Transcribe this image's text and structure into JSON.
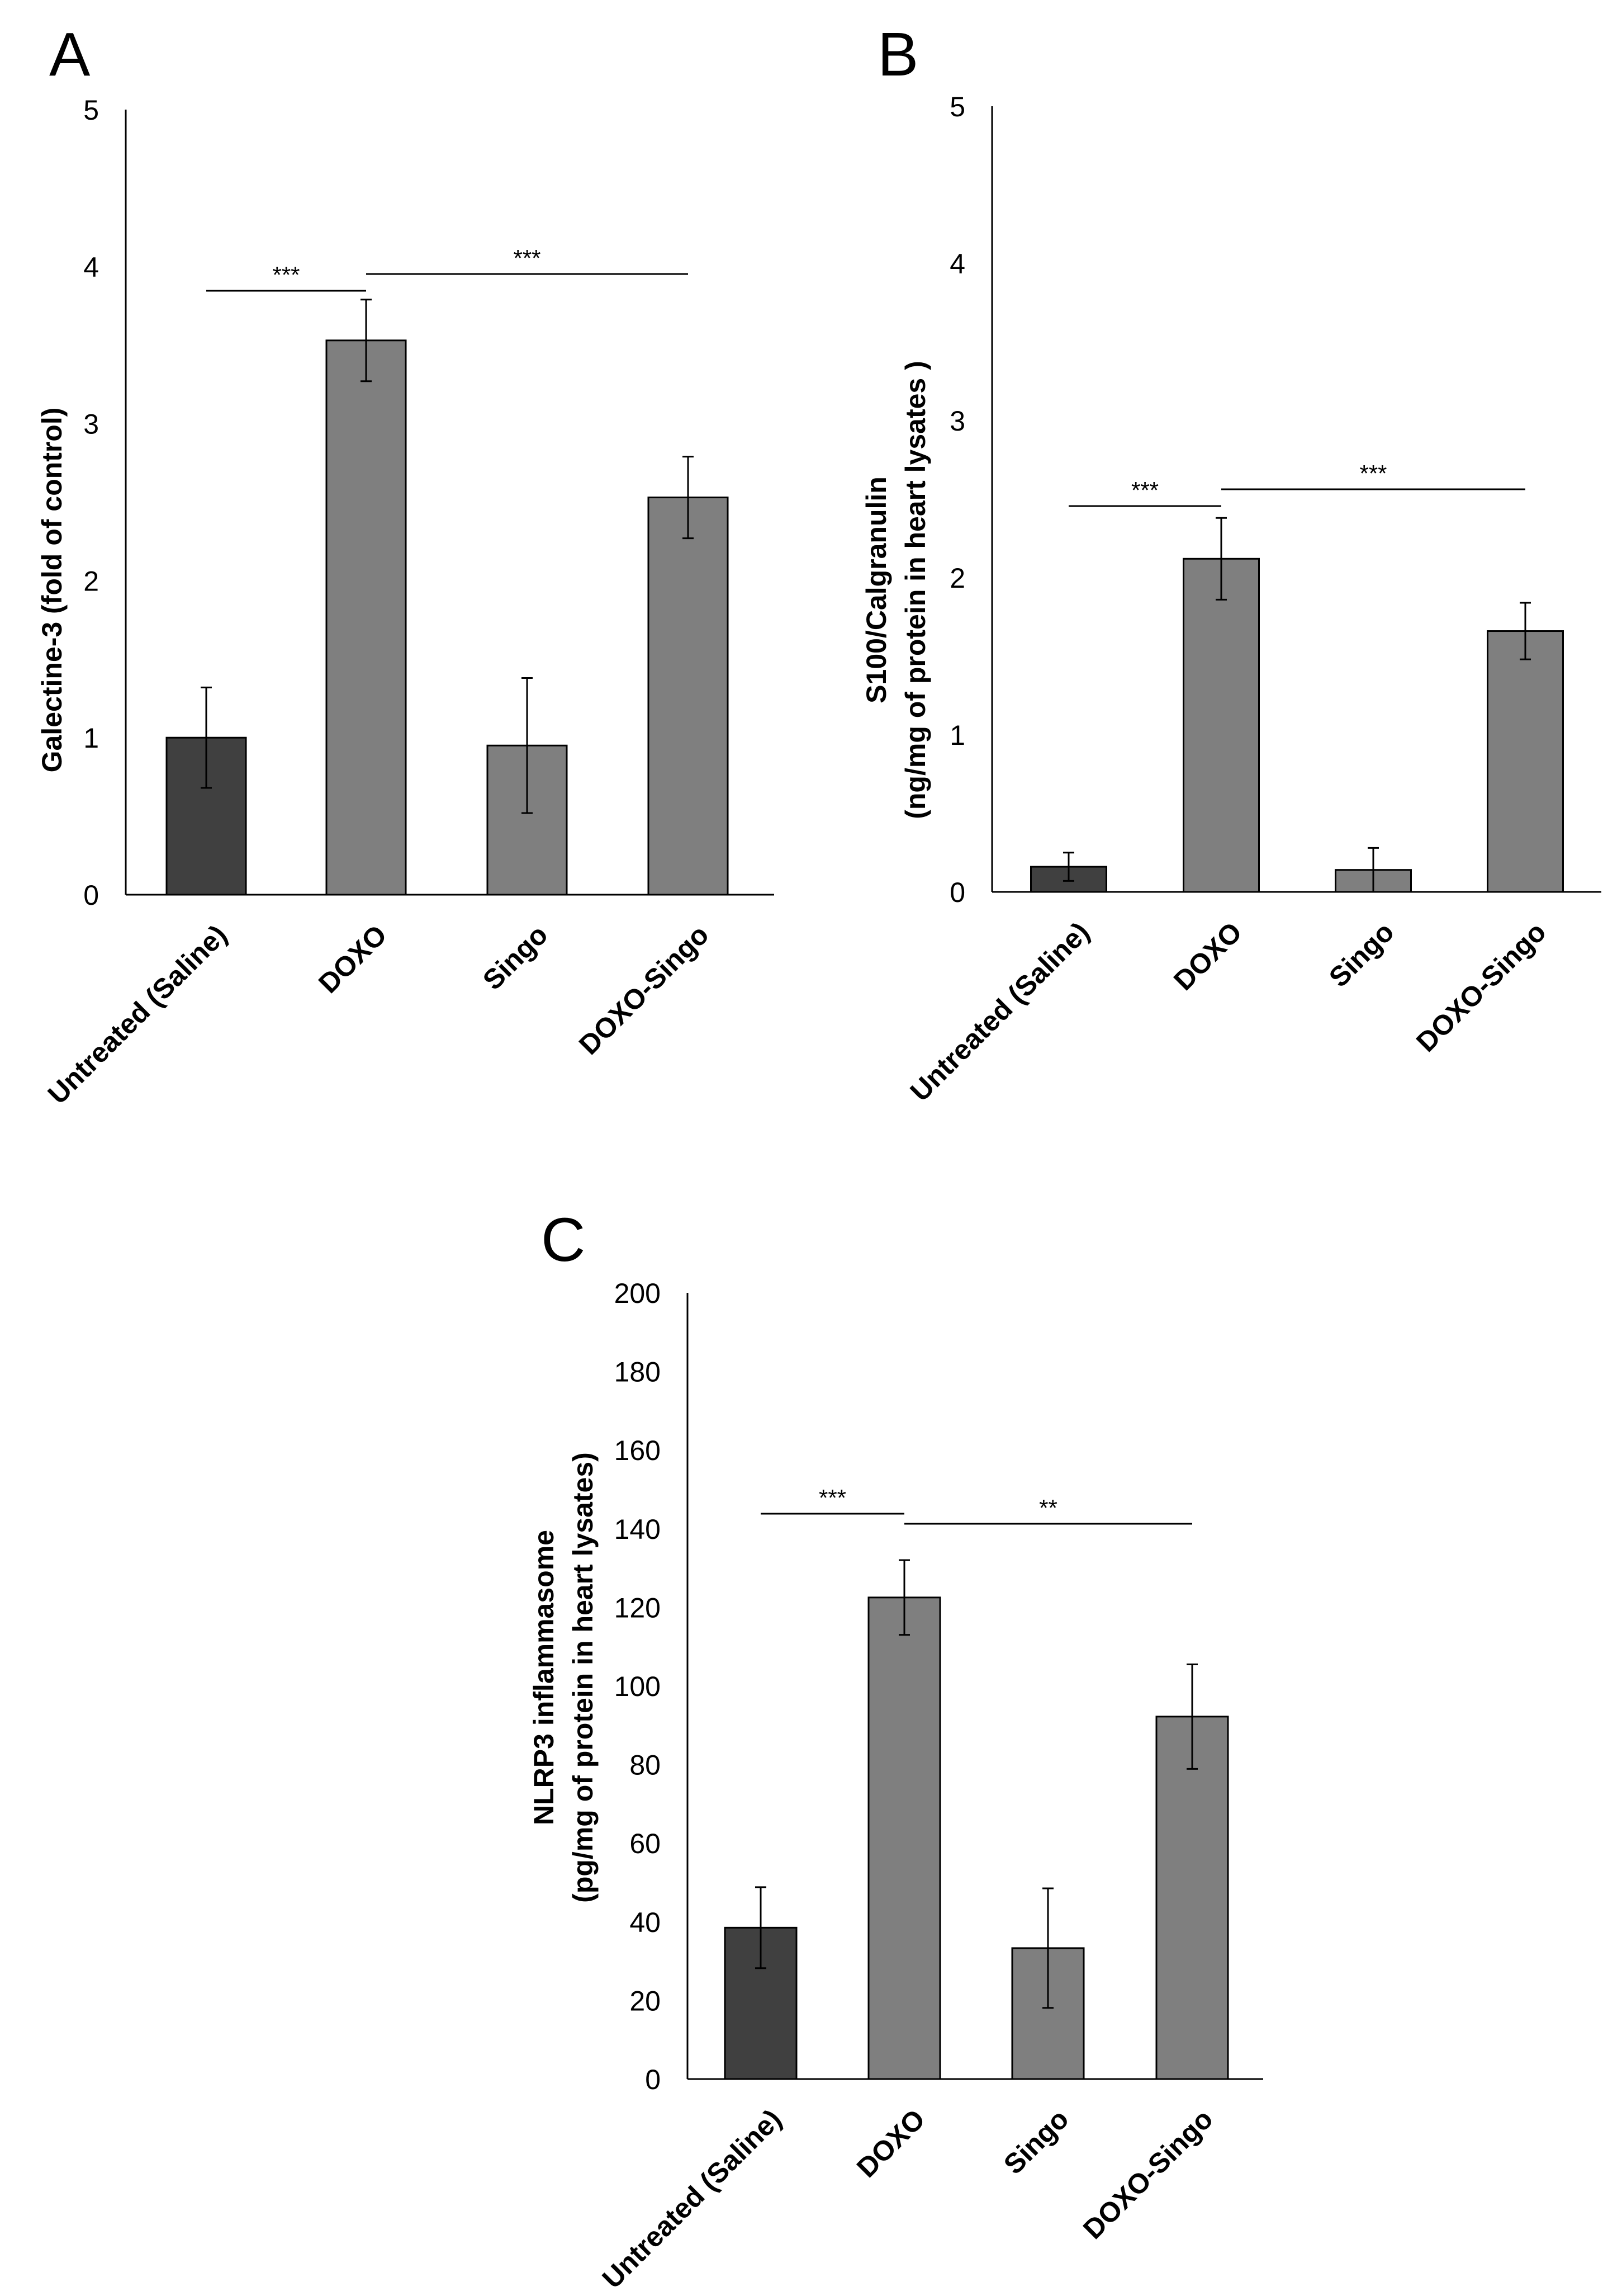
{
  "chart_data": [
    {
      "type": "bar",
      "panel": "A",
      "categories": [
        "Untreated (Saline)",
        "DOXO",
        "Singo",
        "DOXO-Singo"
      ],
      "values": [
        1.0,
        3.53,
        0.95,
        2.53
      ],
      "errors": [
        0.32,
        0.26,
        0.43,
        0.26
      ],
      "ylabel": [
        "Galectine-3 (fold of control)"
      ],
      "ylim": [
        0,
        5
      ],
      "yticks": [
        "0",
        "1",
        "2",
        "3",
        "4",
        "5"
      ],
      "colors": [
        "#404040",
        "#7f7f7f",
        "#7f7f7f",
        "#7f7f7f"
      ],
      "significance": [
        {
          "from": 0,
          "to": 1,
          "label": "***"
        },
        {
          "from": 1,
          "to": 3,
          "label": "***"
        }
      ]
    },
    {
      "type": "bar",
      "panel": "B",
      "categories": [
        "Untreated (Saline)",
        "DOXO",
        "Singo",
        "DOXO-Singo"
      ],
      "values": [
        0.16,
        2.12,
        0.14,
        1.66
      ],
      "errors": [
        0.09,
        0.26,
        0.14,
        0.18
      ],
      "ylabel": [
        "S100/Calgranulin",
        "(ng/mg of protein in heart lysates )"
      ],
      "ylim": [
        0,
        5
      ],
      "yticks": [
        "0",
        "1",
        "2",
        "3",
        "4",
        "5"
      ],
      "colors": [
        "#404040",
        "#7f7f7f",
        "#7f7f7f",
        "#7f7f7f"
      ],
      "significance": [
        {
          "from": 0,
          "to": 1,
          "label": "***"
        },
        {
          "from": 1,
          "to": 3,
          "label": "***"
        }
      ]
    },
    {
      "type": "bar",
      "panel": "C",
      "categories": [
        "Untreated (Saline)",
        "DOXO",
        "Singo",
        "DOXO-Singo"
      ],
      "values": [
        38.5,
        122.5,
        33.3,
        92.2
      ],
      "errors": [
        10.3,
        9.5,
        15.2,
        13.3
      ],
      "ylabel": [
        "NLRP3 inflammasome",
        "(pg/mg of protein in heart lysates)"
      ],
      "ylim": [
        0,
        200
      ],
      "yticks": [
        "0",
        "20",
        "40",
        "60",
        "80",
        "100",
        "120",
        "140",
        "160",
        "180",
        "200"
      ],
      "colors": [
        "#404040",
        "#7f7f7f",
        "#7f7f7f",
        "#7f7f7f"
      ],
      "significance": [
        {
          "from": 0,
          "to": 1,
          "label": "***"
        },
        {
          "from": 1,
          "to": 3,
          "label": "**"
        }
      ]
    }
  ]
}
